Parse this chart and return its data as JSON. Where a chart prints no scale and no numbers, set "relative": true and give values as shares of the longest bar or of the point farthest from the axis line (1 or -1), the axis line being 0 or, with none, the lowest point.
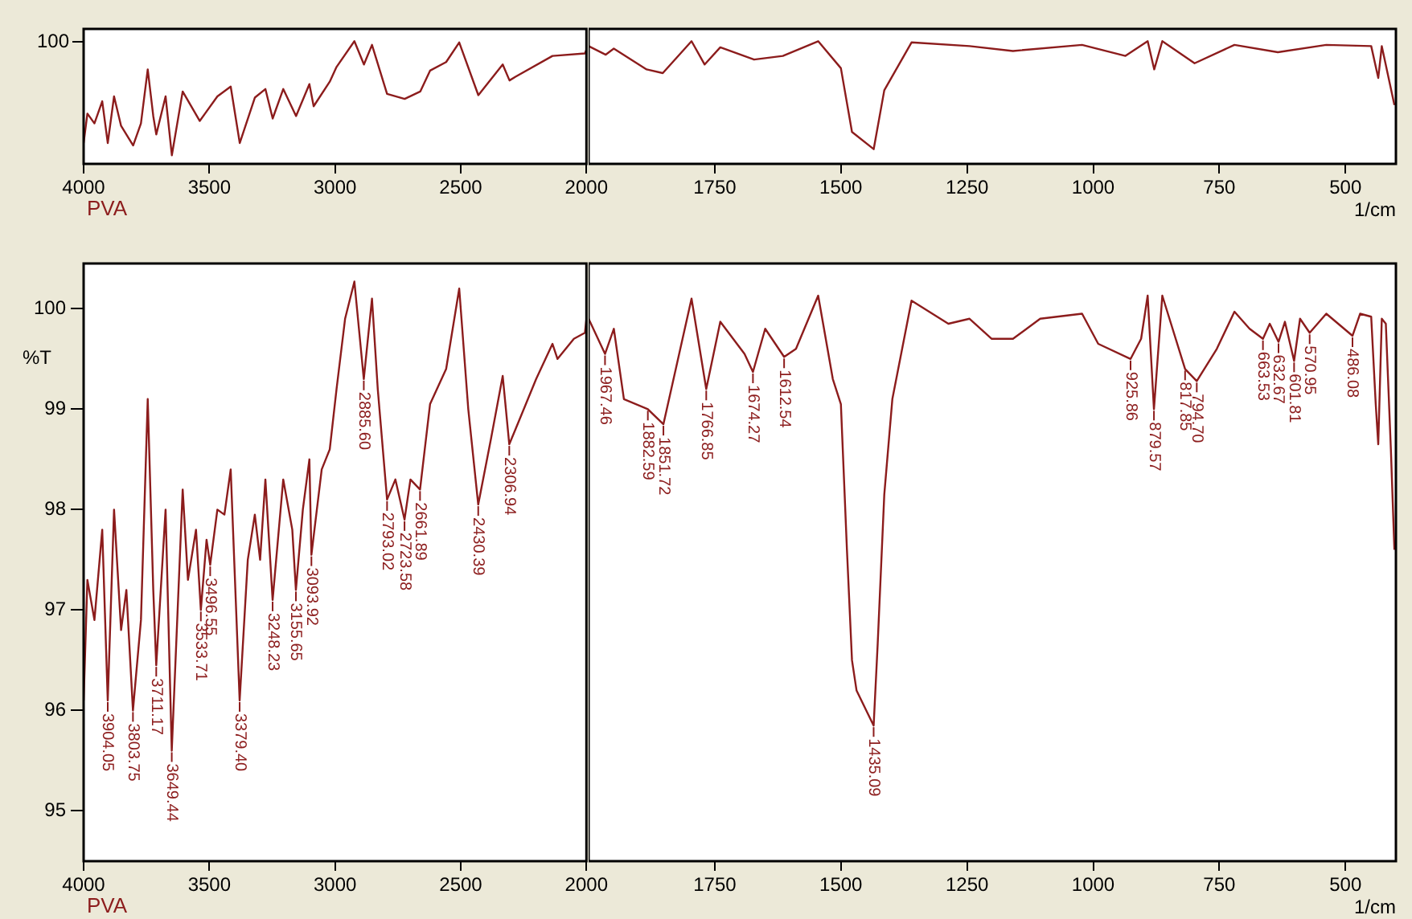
{
  "chart_data": [
    {
      "type": "line",
      "relative": true,
      "xlim": [
        4000,
        2000
      ],
      "xticks": [
        4000,
        3500,
        3000,
        2500,
        2000
      ],
      "annotations": [
        "100"
      ],
      "series": [
        {
          "name": "PVA",
          "color": "#8c1c1c",
          "x": [
            4000,
            3985,
            3957,
            3926,
            3904,
            3879,
            3851,
            3803,
            3772,
            3745,
            3723,
            3711,
            3674,
            3649,
            3606,
            3538,
            3468,
            3415,
            3379,
            3319,
            3277,
            3248,
            3206,
            3155,
            3102,
            3085,
            3021,
            2994,
            2923,
            2885,
            2853,
            2793,
            2723,
            2661,
            2622,
            2558,
            2506,
            2430,
            2333,
            2306,
            2282,
            2135,
            2006,
            2000
          ],
          "values": [
            0.17,
            0.41,
            0.33,
            0.51,
            0.17,
            0.55,
            0.31,
            0.15,
            0.33,
            0.77,
            0.39,
            0.24,
            0.55,
            0.07,
            0.59,
            0.35,
            0.55,
            0.63,
            0.17,
            0.54,
            0.61,
            0.37,
            0.61,
            0.39,
            0.65,
            0.47,
            0.67,
            0.79,
            1,
            0.81,
            0.97,
            0.57,
            0.53,
            0.59,
            0.76,
            0.83,
            0.99,
            0.56,
            0.81,
            0.68,
            0.71,
            0.88,
            0.9,
            0.93
          ]
        }
      ]
    },
    {
      "type": "line",
      "relative": true,
      "xlim": [
        2000,
        400
      ],
      "xticks": [
        1750,
        1500,
        1250,
        1000,
        750,
        500
      ],
      "xlabel": "1/cm",
      "series": [
        {
          "color": "#8c1c1c",
          "x": [
            2000,
            1966,
            1950,
            1885,
            1853,
            1796,
            1770,
            1739,
            1672,
            1615,
            1545,
            1500,
            1478,
            1435,
            1414,
            1360,
            1245,
            1159,
            1022,
            936,
            892,
            879,
            863,
            799,
            720,
            634,
            538,
            449,
            435,
            428,
            403
          ],
          "values": [
            0.96,
            0.89,
            0.94,
            0.77,
            0.74,
            1,
            0.81,
            0.95,
            0.85,
            0.88,
            1,
            0.78,
            0.26,
            0.12,
            0.6,
            0.99,
            0.96,
            0.92,
            0.97,
            0.88,
            1,
            0.77,
            1,
            0.82,
            0.97,
            0.91,
            0.97,
            0.96,
            0.7,
            0.96,
            0.48
          ]
        }
      ]
    },
    {
      "type": "line",
      "xlim": [
        4000,
        2000
      ],
      "xticks": [
        4000,
        3500,
        3000,
        2500,
        2000
      ],
      "ylim": [
        94.5,
        100.45
      ],
      "yticks": [
        95,
        96,
        97,
        98,
        99,
        100
      ],
      "ylabel": "%T",
      "series": [
        {
          "name": "PVA",
          "color": "#8c1c1c",
          "x": [
            4000,
            3985,
            3957,
            3926,
            3904.05,
            3879,
            3851,
            3830,
            3803.75,
            3772,
            3745,
            3723,
            3711.17,
            3674,
            3649.44,
            3606,
            3585,
            3553,
            3533.71,
            3511,
            3496.55,
            3468,
            3440,
            3415,
            3379.4,
            3347,
            3319,
            3298,
            3277,
            3248.23,
            3206,
            3170,
            3155.65,
            3128,
            3102,
            3093.92,
            3053,
            3021,
            2994,
            2960,
            2923,
            2885.6,
            2853,
            2830,
            2793.02,
            2760,
            2723.58,
            2700,
            2661.89,
            2622,
            2558,
            2506,
            2470,
            2430.39,
            2380,
            2333,
            2306.94,
            2282,
            2200,
            2135,
            2115,
            2050,
            2006,
            2000
          ],
          "values": [
            96.1,
            97.3,
            96.9,
            97.8,
            96.1,
            98.0,
            96.8,
            97.2,
            96.0,
            96.9,
            99.1,
            97.2,
            96.45,
            98.0,
            95.6,
            98.2,
            97.3,
            97.8,
            97.0,
            97.7,
            97.45,
            98.0,
            97.95,
            98.4,
            96.1,
            97.5,
            97.95,
            97.5,
            98.3,
            97.1,
            98.3,
            97.8,
            97.2,
            98.0,
            98.5,
            97.55,
            98.4,
            98.6,
            99.2,
            99.9,
            100.27,
            99.3,
            100.1,
            99.2,
            98.1,
            98.3,
            97.9,
            98.3,
            98.2,
            99.05,
            99.4,
            100.2,
            99.0,
            98.05,
            98.7,
            99.33,
            98.65,
            98.8,
            99.3,
            99.65,
            99.5,
            99.7,
            99.76,
            99.9
          ]
        }
      ],
      "annotations": [
        {
          "text": "3904.05",
          "x": 3904.05,
          "y": 96.1
        },
        {
          "text": "3803.75",
          "x": 3803.75,
          "y": 96.0
        },
        {
          "text": "3711.17",
          "x": 3711.17,
          "y": 96.45
        },
        {
          "text": "3649.44",
          "x": 3649.44,
          "y": 95.6
        },
        {
          "text": "3533.71",
          "x": 3533.71,
          "y": 97.0
        },
        {
          "text": "3496.55",
          "x": 3496.55,
          "y": 97.45
        },
        {
          "text": "3379.40",
          "x": 3379.4,
          "y": 96.1
        },
        {
          "text": "3248.23",
          "x": 3248.23,
          "y": 97.1
        },
        {
          "text": "3155.65",
          "x": 3155.65,
          "y": 97.2
        },
        {
          "text": "3093.92",
          "x": 3093.92,
          "y": 97.55
        },
        {
          "text": "2885.60",
          "x": 2885.6,
          "y": 99.3
        },
        {
          "text": "2793.02",
          "x": 2793.02,
          "y": 98.1
        },
        {
          "text": "2723.58",
          "x": 2723.58,
          "y": 97.9
        },
        {
          "text": "2661.89",
          "x": 2661.89,
          "y": 98.2
        },
        {
          "text": "2430.39",
          "x": 2430.39,
          "y": 98.05
        },
        {
          "text": "2306.94",
          "x": 2306.94,
          "y": 98.65
        }
      ]
    },
    {
      "type": "line",
      "xlim": [
        2000,
        400
      ],
      "xticks": [
        1750,
        1500,
        1250,
        1000,
        750,
        500
      ],
      "ylim": [
        94.5,
        100.45
      ],
      "tick_labels": "x",
      "xlabel": "1/cm",
      "series": [
        {
          "color": "#8c1c1c",
          "x": [
            2000,
            1967.46,
            1950,
            1930,
            1882.59,
            1851.72,
            1796,
            1766.85,
            1739,
            1691,
            1674.27,
            1650,
            1612.54,
            1589,
            1545,
            1516,
            1500,
            1488,
            1478,
            1469,
            1435.09,
            1427,
            1414,
            1398,
            1360,
            1287,
            1245,
            1201,
            1159,
            1105,
            1022,
            990,
            925.86,
            905,
            892,
            879.57,
            863,
            817.85,
            794.7,
            755,
            720,
            690,
            663.53,
            650,
            632.67,
            620,
            601.81,
            590,
            570.95,
            538,
            486.08,
            471,
            449,
            440,
            435,
            428,
            420,
            410,
            403
          ],
          "values": [
            99.9,
            99.55,
            99.8,
            99.1,
            99.0,
            98.85,
            100.1,
            99.2,
            99.87,
            99.55,
            99.37,
            99.8,
            99.52,
            99.6,
            100.13,
            99.3,
            99.05,
            97.6,
            96.5,
            96.2,
            95.85,
            96.67,
            98.15,
            99.1,
            100.08,
            99.85,
            99.9,
            99.7,
            99.7,
            99.9,
            99.95,
            99.65,
            99.5,
            99.7,
            100.13,
            99.0,
            100.13,
            99.4,
            99.28,
            99.6,
            99.97,
            99.8,
            99.7,
            99.85,
            99.67,
            99.87,
            99.48,
            99.9,
            99.76,
            99.95,
            99.73,
            99.95,
            99.92,
            99.05,
            98.65,
            99.9,
            99.85,
            98.6,
            97.6
          ]
        }
      ],
      "annotations": [
        {
          "text": "1967.46",
          "x": 1967.46,
          "y": 99.55
        },
        {
          "text": "1882.59",
          "x": 1882.59,
          "y": 99.0
        },
        {
          "text": "1851.72",
          "x": 1851.72,
          "y": 98.85
        },
        {
          "text": "1766.85",
          "x": 1766.85,
          "y": 99.2
        },
        {
          "text": "1674.27",
          "x": 1674.27,
          "y": 99.37
        },
        {
          "text": "1612.54",
          "x": 1612.54,
          "y": 99.52
        },
        {
          "text": "1435.09",
          "x": 1435.09,
          "y": 95.85
        },
        {
          "text": "925.86",
          "x": 925.86,
          "y": 99.5
        },
        {
          "text": "879.57",
          "x": 879.57,
          "y": 99.0
        },
        {
          "text": "817.85",
          "x": 817.85,
          "y": 99.4
        },
        {
          "text": "794.70",
          "x": 794.7,
          "y": 99.28
        },
        {
          "text": "663.53",
          "x": 663.53,
          "y": 99.7
        },
        {
          "text": "632.67",
          "x": 632.67,
          "y": 99.67
        },
        {
          "text": "601.81",
          "x": 601.81,
          "y": 99.48
        },
        {
          "text": "570.95",
          "x": 570.95,
          "y": 99.76
        },
        {
          "text": "486.08",
          "x": 486.08,
          "y": 99.73
        }
      ]
    }
  ]
}
